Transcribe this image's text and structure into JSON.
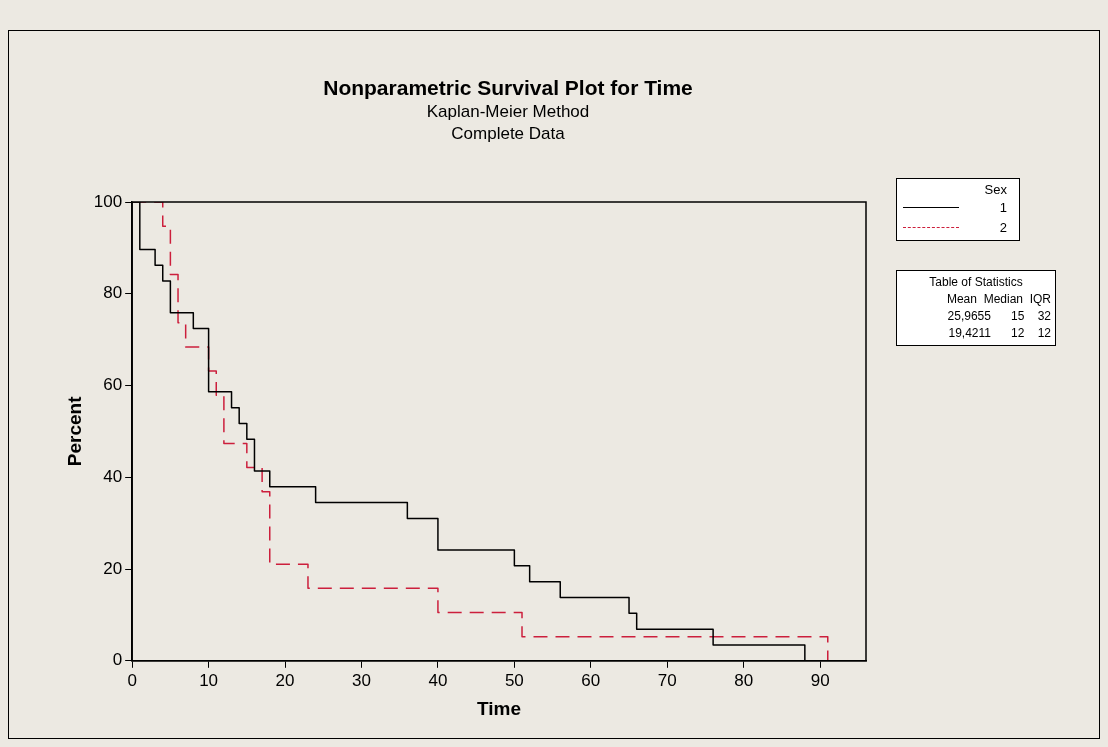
{
  "chart_data": {
    "type": "step",
    "title": "Nonparametric Survival Plot for Time",
    "subtitle": "Kaplan-Meier Method",
    "xlabel": "Time",
    "ylabel": "Percent",
    "legend_title": "Sex",
    "legend": "top right",
    "annotations": [
      "Complete Data",
      "Table of Statistics",
      "Mean  Median  IQR",
      "25,9655      15    32",
      "19,4211      12    12"
    ],
    "xlim": [
      0,
      96
    ],
    "xticks": [
      0,
      10,
      20,
      30,
      40,
      50,
      60,
      70,
      80,
      90
    ],
    "ylim": [
      0,
      100
    ],
    "yticks": [
      0,
      20,
      40,
      60,
      80,
      100
    ],
    "grid": false,
    "series": [
      {
        "name": "1",
        "color": "#000000",
        "line_style": "solid",
        "x": [
          0,
          1,
          3,
          4,
          5,
          8,
          10,
          13,
          14,
          15,
          16,
          18,
          24,
          36,
          40,
          50,
          52,
          56,
          65,
          66,
          76,
          88
        ],
        "values": [
          100,
          89.66,
          86.21,
          82.76,
          75.86,
          72.41,
          58.62,
          55.17,
          51.72,
          48.28,
          41.38,
          37.93,
          34.48,
          31.03,
          24.14,
          20.69,
          17.24,
          13.79,
          10.34,
          6.9,
          3.45,
          0
        ]
      },
      {
        "name": "2",
        "color": "#cc1f3c",
        "line_style": "dashed",
        "x": [
          0,
          4,
          5,
          6,
          7,
          10,
          11,
          12,
          15,
          17,
          18,
          23,
          40,
          51,
          91
        ],
        "values": [
          100,
          94.74,
          84.21,
          73.68,
          68.42,
          63.16,
          57.89,
          47.37,
          42.11,
          36.84,
          21.05,
          15.79,
          10.53,
          5.26,
          0
        ]
      }
    ]
  }
}
